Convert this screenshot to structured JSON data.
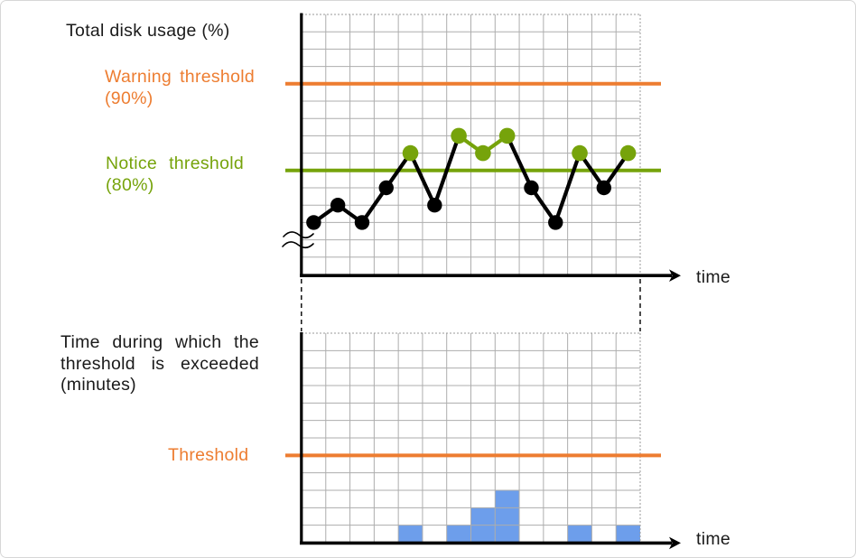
{
  "top_chart": {
    "title": "Total disk usage (%)",
    "warning_label": "Warning threshold (90%)",
    "notice_label": "Notice threshold (80%)",
    "x_axis_label": "time"
  },
  "bottom_chart": {
    "title": "Time during which the threshold is exceeded (minutes)",
    "threshold_label": "Threshold",
    "x_axis_label": "time"
  },
  "colors": {
    "warning_orange": "#ED7D31",
    "notice_green": "#76A30B",
    "bar_blue": "#6D9EEB",
    "series_black": "#000000",
    "grid_gray": "#ADADAD",
    "grid_edge_dotted": "#999999",
    "axis_black": "#000000",
    "text_black": "#1a1a1a",
    "frame_border": "#d7d7d7"
  },
  "chart_data": [
    {
      "type": "line",
      "title": "Total disk usage (%)",
      "ylabel": "Total disk usage (%)",
      "xlabel": "time",
      "x": [
        1,
        2,
        3,
        4,
        5,
        6,
        7,
        8,
        9,
        10,
        11,
        12,
        13,
        14
      ],
      "values": [
        74,
        76,
        74,
        78,
        82,
        76,
        84,
        82,
        84,
        78,
        74,
        82,
        78,
        82
      ],
      "unit": "%",
      "thresholds": [
        {
          "name": "Warning threshold",
          "value": 90,
          "color": "#ED7D31"
        },
        {
          "name": "Notice threshold",
          "value": 80,
          "color": "#76A30B"
        }
      ],
      "point_color_rule": "points above the notice threshold (80%) are green, others black; segments joining two green points are green",
      "y_axis_break": true,
      "grid": {
        "cols": 14,
        "rows": 15,
        "percent_per_row": 2
      },
      "legend": "none"
    },
    {
      "type": "bar",
      "title": "Time during which the threshold is exceeded (minutes)",
      "ylabel": "Time during which the threshold is exceeded (minutes)",
      "xlabel": "time",
      "categories": [
        1,
        2,
        3,
        4,
        5,
        6,
        7,
        8,
        9,
        10,
        11,
        12,
        13,
        14
      ],
      "values": [
        0,
        0,
        0,
        0,
        1,
        0,
        1,
        2,
        3,
        0,
        0,
        1,
        0,
        1
      ],
      "unit": "minutes",
      "threshold": {
        "name": "Threshold",
        "value": 5,
        "color": "#ED7D31"
      },
      "bar_color": "#6D9EEB",
      "grid": {
        "cols": 14,
        "rows": 12,
        "minutes_per_row": 1
      },
      "legend": "none"
    }
  ]
}
